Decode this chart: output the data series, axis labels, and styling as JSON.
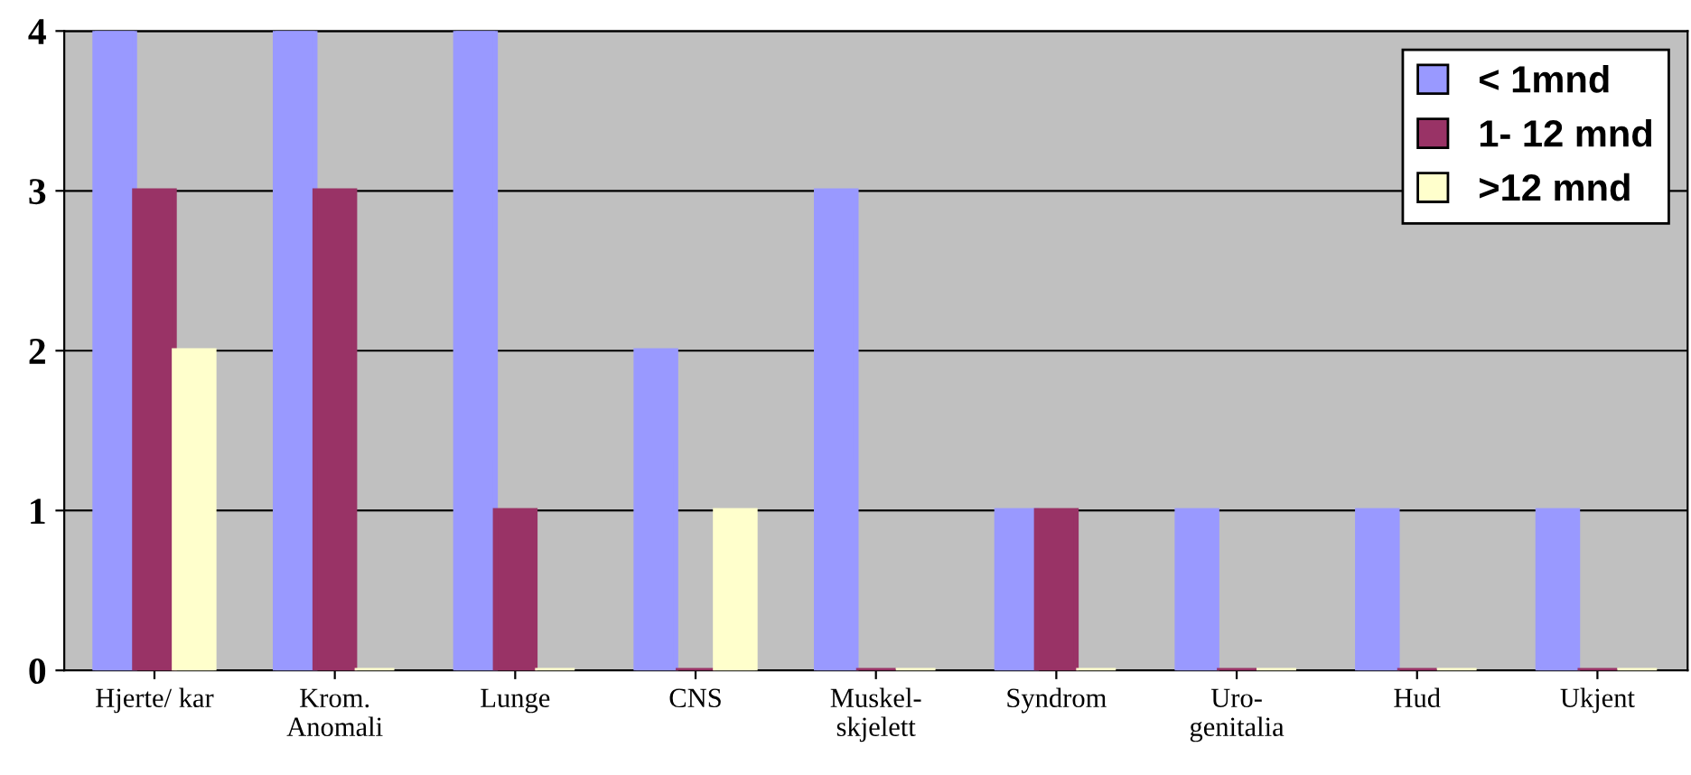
{
  "chart_data": {
    "type": "bar",
    "categories": [
      "Hjerte/ kar",
      "Krom.\nAnomali",
      "Lunge",
      "CNS",
      "Muskel-\nskjelett",
      "Syndrom",
      "Uro-\ngenitalia",
      "Hud",
      "Ukjent"
    ],
    "series": [
      {
        "name": "< 1mnd",
        "color": "#9999ff",
        "values": [
          4,
          4,
          4,
          2,
          3,
          1,
          1,
          1,
          1
        ]
      },
      {
        "name": "1- 12 mnd",
        "color": "#993366",
        "values": [
          3,
          3,
          1,
          0,
          0,
          1,
          0,
          0,
          0
        ]
      },
      {
        "name": ">12 mnd",
        "color": "#ffffcc",
        "values": [
          2,
          0,
          0,
          1,
          0,
          0,
          0,
          0,
          0
        ]
      }
    ],
    "ylim": [
      0,
      4
    ],
    "yticks": [
      0,
      1,
      2,
      3,
      4
    ],
    "grid": "y",
    "legend": "top right"
  }
}
